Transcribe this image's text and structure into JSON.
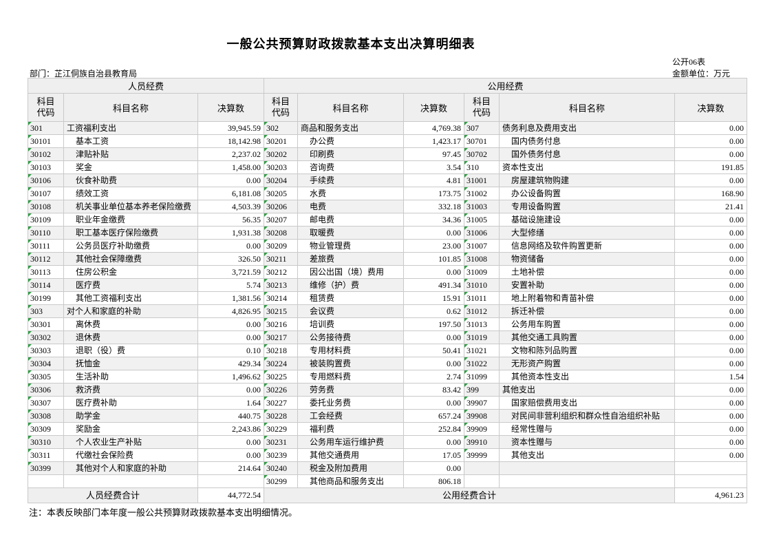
{
  "header": {
    "title": "一般公共预算财政拨款基本支出决算明细表",
    "form_code": "公开06表",
    "department": "部门：芷江侗族自治县教育局",
    "unit": "金额单位：万元"
  },
  "table": {
    "group_personnel": "人员经费",
    "group_public": "公用经费",
    "column_headers": [
      "科目代码",
      "科目名称",
      "决算数"
    ],
    "rows": [
      [
        [
          "301",
          "工资福利支出",
          "39,945.59",
          0
        ],
        [
          "302",
          "商品和服务支出",
          "4,769.38",
          0
        ],
        [
          "307",
          "债务利息及费用支出",
          "0.00",
          0
        ]
      ],
      [
        [
          "30101",
          "基本工资",
          "18,142.98",
          1
        ],
        [
          "30201",
          "办公费",
          "1,423.17",
          1
        ],
        [
          "30701",
          "国内债务付息",
          "0.00",
          1
        ]
      ],
      [
        [
          "30102",
          "津贴补贴",
          "2,237.02",
          1
        ],
        [
          "30202",
          "印刷费",
          "97.45",
          1
        ],
        [
          "30702",
          "国外债务付息",
          "0.00",
          1
        ]
      ],
      [
        [
          "30103",
          "奖金",
          "1,458.00",
          1
        ],
        [
          "30203",
          "咨询费",
          "3.54",
          1
        ],
        [
          "310",
          "资本性支出",
          "191.85",
          0
        ]
      ],
      [
        [
          "30106",
          "伙食补助费",
          "0.00",
          1
        ],
        [
          "30204",
          "手续费",
          "4.81",
          1
        ],
        [
          "31001",
          "房屋建筑物购建",
          "0.00",
          1
        ]
      ],
      [
        [
          "30107",
          "绩效工资",
          "6,181.08",
          1
        ],
        [
          "30205",
          "水费",
          "173.75",
          1
        ],
        [
          "31002",
          "办公设备购置",
          "168.90",
          1
        ]
      ],
      [
        [
          "30108",
          "机关事业单位基本养老保险缴费",
          "4,503.39",
          1
        ],
        [
          "30206",
          "电费",
          "332.18",
          1
        ],
        [
          "31003",
          "专用设备购置",
          "21.41",
          1
        ]
      ],
      [
        [
          "30109",
          "职业年金缴费",
          "56.35",
          1
        ],
        [
          "30207",
          "邮电费",
          "34.36",
          1
        ],
        [
          "31005",
          "基础设施建设",
          "0.00",
          1
        ]
      ],
      [
        [
          "30110",
          "职工基本医疗保险缴费",
          "1,931.38",
          1
        ],
        [
          "30208",
          "取暖费",
          "0.00",
          1
        ],
        [
          "31006",
          "大型修缮",
          "0.00",
          1
        ]
      ],
      [
        [
          "30111",
          "公务员医疗补助缴费",
          "0.00",
          1
        ],
        [
          "30209",
          "物业管理费",
          "23.00",
          1
        ],
        [
          "31007",
          "信息网络及软件购置更新",
          "0.00",
          1
        ]
      ],
      [
        [
          "30112",
          "其他社会保障缴费",
          "326.50",
          1
        ],
        [
          "30211",
          "差旅费",
          "101.85",
          1
        ],
        [
          "31008",
          "物资储备",
          "0.00",
          1
        ]
      ],
      [
        [
          "30113",
          "住房公积金",
          "3,721.59",
          1
        ],
        [
          "30212",
          "因公出国（境）费用",
          "0.00",
          1
        ],
        [
          "31009",
          "土地补偿",
          "0.00",
          1
        ]
      ],
      [
        [
          "30114",
          "医疗费",
          "5.74",
          1
        ],
        [
          "30213",
          "维修（护）费",
          "491.34",
          1
        ],
        [
          "31010",
          "安置补助",
          "0.00",
          1
        ]
      ],
      [
        [
          "30199",
          "其他工资福利支出",
          "1,381.56",
          1
        ],
        [
          "30214",
          "租赁费",
          "15.91",
          1
        ],
        [
          "31011",
          "地上附着物和青苗补偿",
          "0.00",
          1
        ]
      ],
      [
        [
          "303",
          "对个人和家庭的补助",
          "4,826.95",
          0
        ],
        [
          "30215",
          "会议费",
          "0.62",
          1
        ],
        [
          "31012",
          "拆迁补偿",
          "0.00",
          1
        ]
      ],
      [
        [
          "30301",
          "离休费",
          "0.00",
          1
        ],
        [
          "30216",
          "培训费",
          "197.50",
          1
        ],
        [
          "31013",
          "公务用车购置",
          "0.00",
          1
        ]
      ],
      [
        [
          "30302",
          "退休费",
          "0.00",
          1
        ],
        [
          "30217",
          "公务接待费",
          "0.00",
          1
        ],
        [
          "31019",
          "其他交通工具购置",
          "0.00",
          1
        ]
      ],
      [
        [
          "30303",
          "退职（役）费",
          "0.10",
          1
        ],
        [
          "30218",
          "专用材料费",
          "50.41",
          1
        ],
        [
          "31021",
          "文物和陈列品购置",
          "0.00",
          1
        ]
      ],
      [
        [
          "30304",
          "抚恤金",
          "429.34",
          1
        ],
        [
          "30224",
          "被装购置费",
          "0.00",
          1
        ],
        [
          "31022",
          "无形资产购置",
          "0.00",
          1
        ]
      ],
      [
        [
          "30305",
          "生活补助",
          "1,496.62",
          1
        ],
        [
          "30225",
          "专用燃料费",
          "2.74",
          1
        ],
        [
          "31099",
          "其他资本性支出",
          "1.54",
          1
        ]
      ],
      [
        [
          "30306",
          "救济费",
          "0.00",
          1
        ],
        [
          "30226",
          "劳务费",
          "83.42",
          1
        ],
        [
          "399",
          "其他支出",
          "0.00",
          0
        ]
      ],
      [
        [
          "30307",
          "医疗费补助",
          "1.64",
          1
        ],
        [
          "30227",
          "委托业务费",
          "0.00",
          1
        ],
        [
          "39907",
          "国家赔偿费用支出",
          "0.00",
          1
        ]
      ],
      [
        [
          "30308",
          "助学金",
          "440.75",
          1
        ],
        [
          "30228",
          "工会经费",
          "657.24",
          1
        ],
        [
          "39908",
          "对民间非营利组织和群众性自治组织补贴",
          "0.00",
          1
        ]
      ],
      [
        [
          "30309",
          "奖励金",
          "2,243.86",
          1
        ],
        [
          "30229",
          "福利费",
          "252.84",
          1
        ],
        [
          "39909",
          "经常性赠与",
          "0.00",
          1
        ]
      ],
      [
        [
          "30310",
          "个人农业生产补贴",
          "0.00",
          1
        ],
        [
          "30231",
          "公务用车运行维护费",
          "0.00",
          1
        ],
        [
          "39910",
          "资本性赠与",
          "0.00",
          1
        ]
      ],
      [
        [
          "30311",
          "代缴社会保险费",
          "0.00",
          1
        ],
        [
          "30239",
          "其他交通费用",
          "17.05",
          1
        ],
        [
          "39999",
          "其他支出",
          "0.00",
          1
        ]
      ],
      [
        [
          "30399",
          "其他对个人和家庭的补助",
          "214.64",
          1
        ],
        [
          "30240",
          "税金及附加费用",
          "0.00",
          1
        ],
        [
          "",
          "",
          "",
          0
        ]
      ],
      [
        [
          "",
          "",
          "",
          0
        ],
        [
          "30299",
          "其他商品和服务支出",
          "806.18",
          1
        ],
        [
          "",
          "",
          "",
          0
        ]
      ]
    ],
    "personnel_total_label": "人员经费合计",
    "personnel_total": "44,772.54",
    "public_total_label": "公用经费合计",
    "public_total": "4,961.23"
  },
  "footer": {
    "note": "注：本表反映部门本年度一般公共预算财政拨款基本支出明细情况。"
  },
  "colors": {
    "band": "#f1f1f1",
    "header_bg": "#efefef",
    "border": "#c9c9c9",
    "flag_green": "#2f9e44"
  }
}
